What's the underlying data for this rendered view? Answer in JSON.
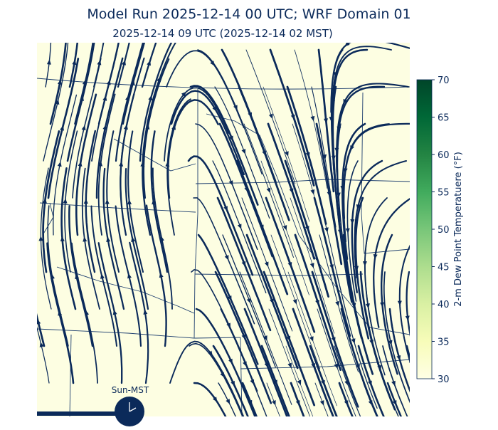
{
  "title": "Model Run 2025-12-14 00 UTC; WRF Domain 01",
  "subtitle": "2025-12-14 09 UTC  (2025-12-14 02 MST)",
  "colorbar": {
    "label": "2-m Dew Point Temperatuere (°F)",
    "lim": [
      30,
      70
    ],
    "ticks": [
      30,
      35,
      40,
      45,
      50,
      55,
      60,
      65,
      70
    ],
    "colors": [
      "#ffffe5",
      "#f7fcb9",
      "#d9f0a3",
      "#addd8e",
      "#78c679",
      "#41ab5d",
      "#238443",
      "#006837",
      "#004529"
    ]
  },
  "clock": {
    "label": "Sun-MST"
  }
}
